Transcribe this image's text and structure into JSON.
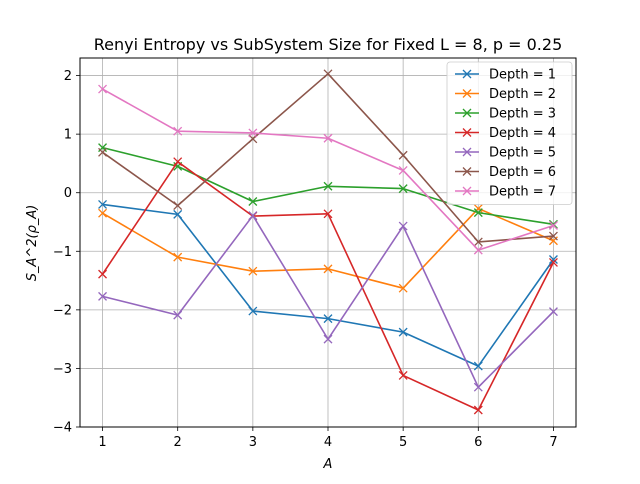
{
  "chart_data": {
    "type": "line",
    "title": "Renyi Entropy vs SubSystem Size for Fixed L = 8, p = 0.25",
    "xlabel": "A",
    "ylabel": "S_A^2(ρ_A)",
    "x": [
      1,
      2,
      3,
      4,
      5,
      6,
      7
    ],
    "xlim": [
      0.7,
      7.3
    ],
    "ylim": [
      -4,
      2.3
    ],
    "xticks": [
      1,
      2,
      3,
      4,
      5,
      6,
      7
    ],
    "yticks": [
      -4,
      -3,
      -2,
      -1,
      0,
      1,
      2
    ],
    "grid": true,
    "legend_position": "top-right",
    "marker": "x",
    "series": [
      {
        "name": "Depth = 1",
        "color": "#1f77b4",
        "values": [
          -0.2,
          -0.37,
          -2.02,
          -2.15,
          -2.38,
          -2.96,
          -1.14
        ]
      },
      {
        "name": "Depth = 2",
        "color": "#ff7f0e",
        "values": [
          -0.35,
          -1.1,
          -1.34,
          -1.3,
          -1.63,
          -0.27,
          -0.82
        ]
      },
      {
        "name": "Depth = 3",
        "color": "#2ca02c",
        "values": [
          0.77,
          0.45,
          -0.15,
          0.11,
          0.07,
          -0.34,
          -0.54
        ]
      },
      {
        "name": "Depth = 4",
        "color": "#d62728",
        "values": [
          -1.39,
          0.53,
          -0.4,
          -0.36,
          -3.12,
          -3.71,
          -1.19
        ]
      },
      {
        "name": "Depth = 5",
        "color": "#9467bd",
        "values": [
          -1.77,
          -2.09,
          -0.39,
          -2.5,
          -0.57,
          -3.32,
          -2.03
        ]
      },
      {
        "name": "Depth = 6",
        "color": "#8c564b",
        "values": [
          0.69,
          -0.22,
          0.92,
          2.03,
          0.64,
          -0.84,
          -0.74
        ]
      },
      {
        "name": "Depth = 7",
        "color": "#e377c2",
        "values": [
          1.77,
          1.05,
          1.02,
          0.93,
          0.38,
          -0.98,
          -0.56
        ]
      }
    ]
  }
}
